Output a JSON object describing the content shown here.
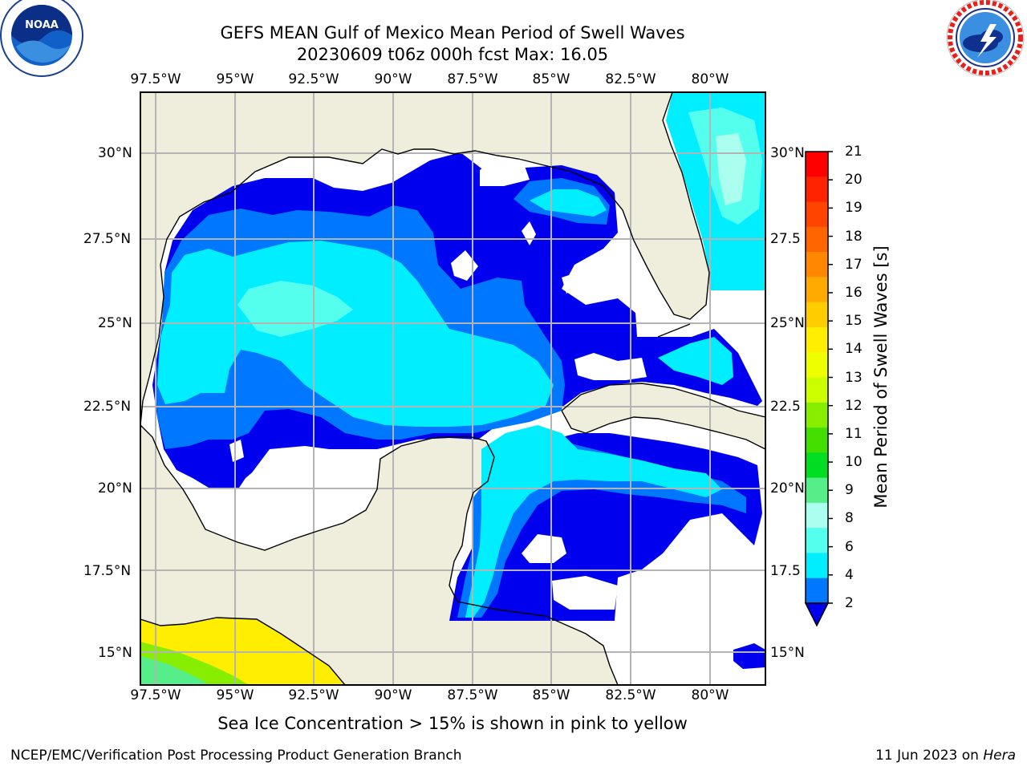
{
  "header": {
    "title_line1": "GEFS MEAN Gulf of Mexico Mean Period of Swell Waves",
    "title_line2": "20230609 t06z 000h fcst   Max: 16.05"
  },
  "logos": {
    "left": "NOAA",
    "right": "NATIONAL WEATHER SERVICE"
  },
  "map": {
    "lon_labels": [
      "97.5°W",
      "95°W",
      "92.5°W",
      "90°W",
      "87.5°W",
      "85°W",
      "82.5°W",
      "80°W"
    ],
    "lat_labels_left": [
      "30°N",
      "27.5°N",
      "25°N",
      "22.5°N",
      "20°N",
      "17.5°N",
      "15°N"
    ],
    "lat_labels_right": [
      "30°N",
      "27.5",
      "25°N",
      "22.5",
      "20°N",
      "17.5",
      "15°N"
    ],
    "land_color": "#efeedc",
    "grid_color": "#b4b4b4"
  },
  "colorbar": {
    "title": "Mean Period of Swell Waves [s]",
    "ticks": [
      "21",
      "20",
      "19",
      "18",
      "17",
      "16",
      "15",
      "14",
      "13",
      "12",
      "11",
      "10",
      "9",
      "8",
      "6",
      "4",
      "2"
    ],
    "colors_top_to_bottom": [
      "#ff0000",
      "#ff2200",
      "#ff4400",
      "#ff6600",
      "#ff8800",
      "#ffaa00",
      "#ffcc00",
      "#ffee00",
      "#eeff00",
      "#ccff00",
      "#88ee00",
      "#44dd00",
      "#00dd22",
      "#55ee88",
      "#aaffee",
      "#55ffee",
      "#00eeff",
      "#0077ff"
    ],
    "extend_color": "#0000ee"
  },
  "footer": {
    "note": "Sea Ice Concentration > 15% is shown in pink to yellow",
    "left": "NCEP/EMC/Verification Post Processing Product Generation Branch",
    "right_date": "11 Jun 2023 on ",
    "right_host": "Hera"
  }
}
